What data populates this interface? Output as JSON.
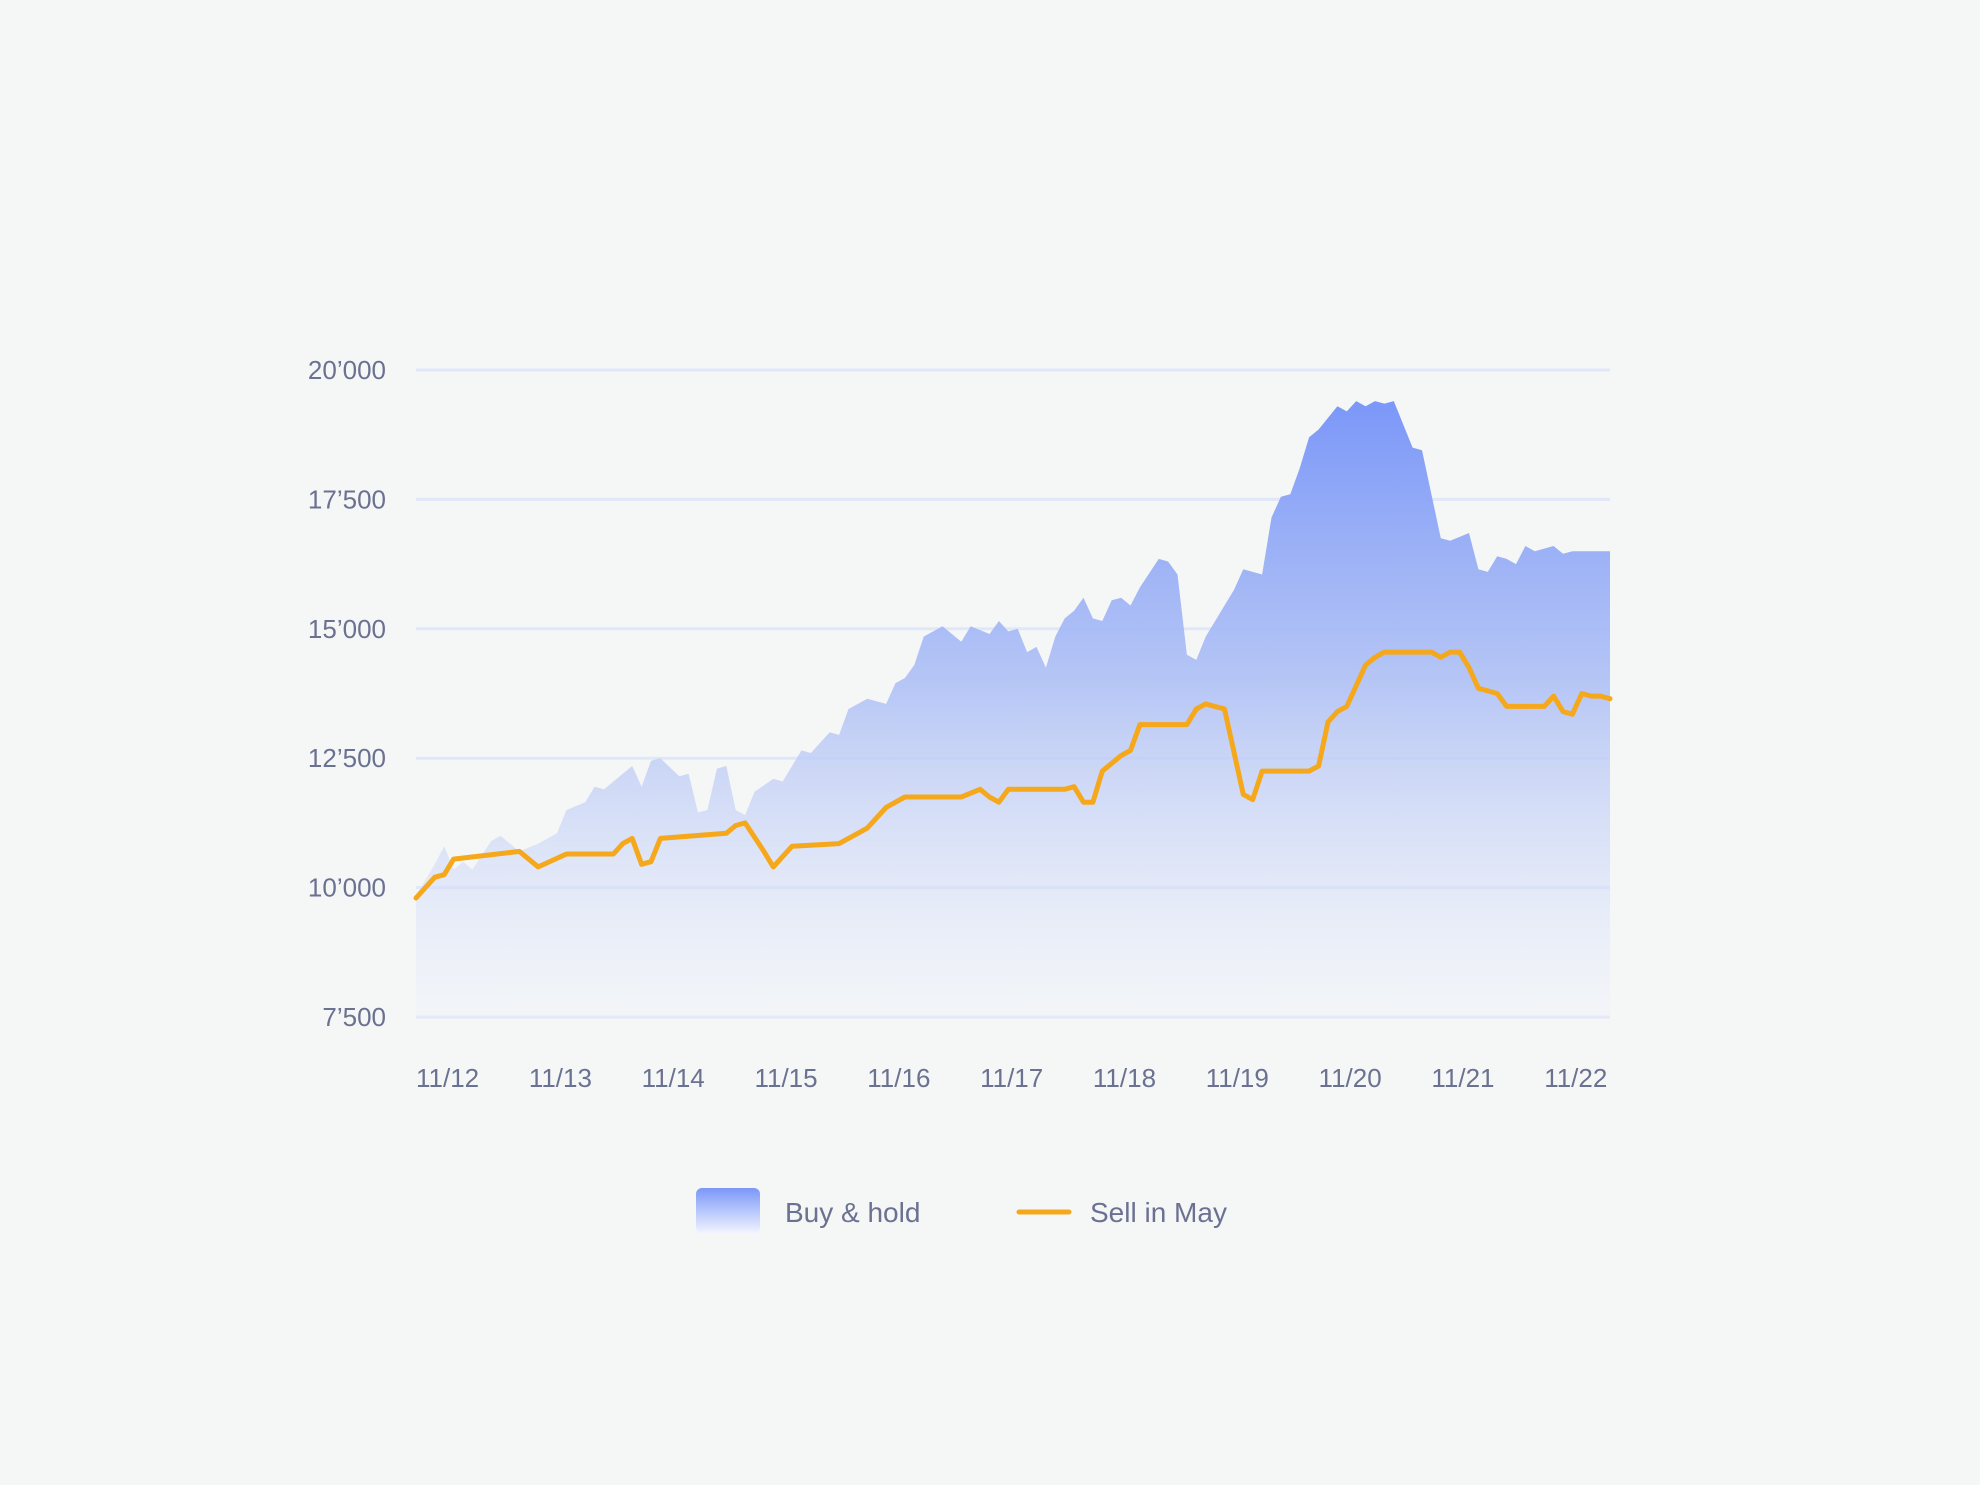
{
  "chart_data": {
    "type": "area",
    "title": "",
    "xlabel": "",
    "ylabel": "",
    "ylim": [
      7500,
      20000
    ],
    "x_range": [
      "2012-11",
      "2023-06"
    ],
    "grid": true,
    "legend_placement": "bottom-center",
    "y_ticks": [
      {
        "value": 7500,
        "label": "7’500"
      },
      {
        "value": 10000,
        "label": "10’000"
      },
      {
        "value": 12500,
        "label": "12’500"
      },
      {
        "value": 15000,
        "label": "15’000"
      },
      {
        "value": 17500,
        "label": "17’500"
      },
      {
        "value": 20000,
        "label": "20’000"
      }
    ],
    "x_ticks": [
      {
        "value": "2012-11",
        "label": "11/12"
      },
      {
        "value": "2013-11",
        "label": "11/13"
      },
      {
        "value": "2014-11",
        "label": "11/14"
      },
      {
        "value": "2015-11",
        "label": "11/15"
      },
      {
        "value": "2016-11",
        "label": "11/16"
      },
      {
        "value": "2017-11",
        "label": "11/17"
      },
      {
        "value": "2018-11",
        "label": "11/18"
      },
      {
        "value": "2019-11",
        "label": "11/19"
      },
      {
        "value": "2020-11",
        "label": "11/20"
      },
      {
        "value": "2021-11",
        "label": "11/21"
      },
      {
        "value": "2022-11",
        "label": "11/22"
      }
    ],
    "series": [
      {
        "name": "Buy & hold",
        "type": "area",
        "color": "#7f9cf8",
        "points": [
          [
            "2012-11",
            9850
          ],
          [
            "2013-01",
            10450
          ],
          [
            "2013-02",
            10800
          ],
          [
            "2013-03",
            10350
          ],
          [
            "2013-04",
            10500
          ],
          [
            "2013-05",
            10350
          ],
          [
            "2013-07",
            10900
          ],
          [
            "2013-08",
            11000
          ],
          [
            "2013-10",
            10700
          ],
          [
            "2013-12",
            10850
          ],
          [
            "2014-02",
            11050
          ],
          [
            "2014-03",
            11500
          ],
          [
            "2014-05",
            11650
          ],
          [
            "2014-06",
            11950
          ],
          [
            "2014-07",
            11900
          ],
          [
            "2014-09",
            12200
          ],
          [
            "2014-10",
            12350
          ],
          [
            "2014-11",
            11950
          ],
          [
            "2014-12",
            12450
          ],
          [
            "2015-01",
            12500
          ],
          [
            "2015-03",
            12150
          ],
          [
            "2015-04",
            12200
          ],
          [
            "2015-05",
            11450
          ],
          [
            "2015-06",
            11500
          ],
          [
            "2015-07",
            12300
          ],
          [
            "2015-08",
            12350
          ],
          [
            "2015-09",
            11500
          ],
          [
            "2015-10",
            11400
          ],
          [
            "2015-11",
            11850
          ],
          [
            "2016-01",
            12100
          ],
          [
            "2016-02",
            12050
          ],
          [
            "2016-04",
            12650
          ],
          [
            "2016-05",
            12600
          ],
          [
            "2016-07",
            13000
          ],
          [
            "2016-08",
            12950
          ],
          [
            "2016-09",
            13450
          ],
          [
            "2016-11",
            13650
          ],
          [
            "2017-01",
            13550
          ],
          [
            "2017-02",
            13950
          ],
          [
            "2017-03",
            14050
          ],
          [
            "2017-04",
            14300
          ],
          [
            "2017-05",
            14850
          ],
          [
            "2017-07",
            15050
          ],
          [
            "2017-09",
            14750
          ],
          [
            "2017-10",
            15050
          ],
          [
            "2017-12",
            14900
          ],
          [
            "2018-01",
            15150
          ],
          [
            "2018-02",
            14950
          ],
          [
            "2018-03",
            15000
          ],
          [
            "2018-04",
            14550
          ],
          [
            "2018-05",
            14650
          ],
          [
            "2018-06",
            14250
          ],
          [
            "2018-07",
            14850
          ],
          [
            "2018-08",
            15200
          ],
          [
            "2018-09",
            15350
          ],
          [
            "2018-10",
            15600
          ],
          [
            "2018-11",
            15200
          ],
          [
            "2018-12",
            15150
          ],
          [
            "2019-01",
            15550
          ],
          [
            "2019-02",
            15600
          ],
          [
            "2019-03",
            15450
          ],
          [
            "2019-04",
            15800
          ],
          [
            "2019-06",
            16350
          ],
          [
            "2019-07",
            16300
          ],
          [
            "2019-08",
            16050
          ],
          [
            "2019-09",
            14500
          ],
          [
            "2019-10",
            14400
          ],
          [
            "2019-11",
            14850
          ],
          [
            "2020-01",
            15450
          ],
          [
            "2020-02",
            15750
          ],
          [
            "2020-03",
            16150
          ],
          [
            "2020-04",
            16100
          ],
          [
            "2020-05",
            16050
          ],
          [
            "2020-06",
            17150
          ],
          [
            "2020-07",
            17550
          ],
          [
            "2020-08",
            17600
          ],
          [
            "2020-09",
            18100
          ],
          [
            "2020-10",
            18700
          ],
          [
            "2020-11",
            18850
          ],
          [
            "2021-01",
            19300
          ],
          [
            "2021-02",
            19200
          ],
          [
            "2021-03",
            19400
          ],
          [
            "2021-04",
            19300
          ],
          [
            "2021-05",
            19400
          ],
          [
            "2021-06",
            19350
          ],
          [
            "2021-07",
            19400
          ],
          [
            "2021-09",
            18500
          ],
          [
            "2021-10",
            18450
          ],
          [
            "2021-12",
            16750
          ],
          [
            "2022-01",
            16700
          ],
          [
            "2022-03",
            16850
          ],
          [
            "2022-04",
            16150
          ],
          [
            "2022-05",
            16100
          ],
          [
            "2022-06",
            16400
          ],
          [
            "2022-07",
            16350
          ],
          [
            "2022-08",
            16250
          ],
          [
            "2022-09",
            16600
          ],
          [
            "2022-10",
            16500
          ],
          [
            "2022-11",
            16550
          ],
          [
            "2022-12",
            16600
          ],
          [
            "2023-01",
            16450
          ],
          [
            "2023-02",
            16500
          ]
        ]
      },
      {
        "name": "Sell in May",
        "type": "line",
        "color": "#f5a81b",
        "points": [
          [
            "2012-11",
            9800
          ],
          [
            "2013-01",
            10200
          ],
          [
            "2013-02",
            10250
          ],
          [
            "2013-03",
            10550
          ],
          [
            "2013-10",
            10700
          ],
          [
            "2013-12",
            10400
          ],
          [
            "2014-03",
            10650
          ],
          [
            "2014-08",
            10650
          ],
          [
            "2014-09",
            10850
          ],
          [
            "2014-10",
            10950
          ],
          [
            "2014-11",
            10450
          ],
          [
            "2014-12",
            10500
          ],
          [
            "2015-01",
            10950
          ],
          [
            "2015-08",
            11050
          ],
          [
            "2015-09",
            11200
          ],
          [
            "2015-10",
            11250
          ],
          [
            "2015-12",
            10700
          ],
          [
            "2016-01",
            10400
          ],
          [
            "2016-03",
            10800
          ],
          [
            "2016-08",
            10850
          ],
          [
            "2016-10",
            11050
          ],
          [
            "2016-11",
            11150
          ],
          [
            "2017-01",
            11550
          ],
          [
            "2017-02",
            11650
          ],
          [
            "2017-03",
            11750
          ],
          [
            "2017-09",
            11750
          ],
          [
            "2017-11",
            11900
          ],
          [
            "2017-12",
            11750
          ],
          [
            "2018-01",
            11650
          ],
          [
            "2018-02",
            11900
          ],
          [
            "2018-08",
            11900
          ],
          [
            "2018-09",
            11950
          ],
          [
            "2018-10",
            11650
          ],
          [
            "2018-11",
            11650
          ],
          [
            "2018-12",
            12250
          ],
          [
            "2019-02",
            12550
          ],
          [
            "2019-03",
            12650
          ],
          [
            "2019-04",
            13150
          ],
          [
            "2019-09",
            13150
          ],
          [
            "2019-10",
            13450
          ],
          [
            "2019-11",
            13550
          ],
          [
            "2020-01",
            13450
          ],
          [
            "2020-03",
            11800
          ],
          [
            "2020-04",
            11700
          ],
          [
            "2020-05",
            12250
          ],
          [
            "2020-10",
            12250
          ],
          [
            "2020-11",
            12350
          ],
          [
            "2020-12",
            13200
          ],
          [
            "2021-01",
            13400
          ],
          [
            "2021-02",
            13500
          ],
          [
            "2021-04",
            14300
          ],
          [
            "2021-05",
            14450
          ],
          [
            "2021-06",
            14550
          ],
          [
            "2021-11",
            14550
          ],
          [
            "2021-12",
            14450
          ],
          [
            "2022-01",
            14550
          ],
          [
            "2022-02",
            14550
          ],
          [
            "2022-03",
            14250
          ],
          [
            "2022-04",
            13850
          ],
          [
            "2022-05",
            13800
          ],
          [
            "2022-06",
            13750
          ],
          [
            "2022-07",
            13500
          ],
          [
            "2022-11",
            13500
          ],
          [
            "2022-12",
            13700
          ],
          [
            "2023-01",
            13400
          ],
          [
            "2023-02",
            13350
          ],
          [
            "2023-03",
            13750
          ],
          [
            "2023-04",
            13700
          ],
          [
            "2023-05",
            13700
          ],
          [
            "2023-06",
            13650
          ]
        ]
      }
    ]
  }
}
